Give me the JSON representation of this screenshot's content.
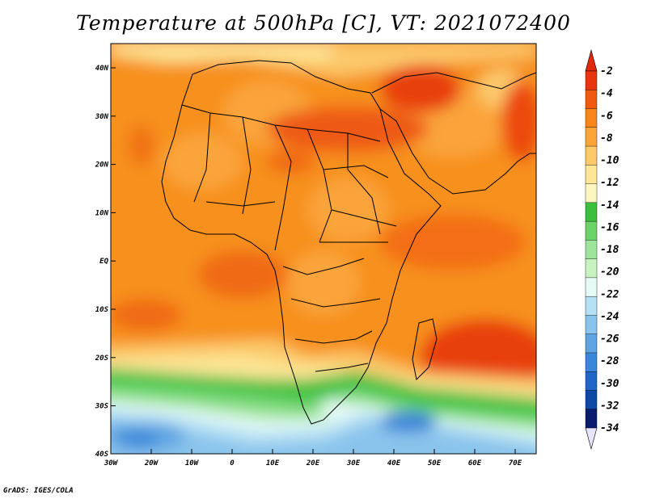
{
  "title": "Temperature at 500hPa [C], VT: 2021072400",
  "credit": "GrADS: IGES/COLA",
  "lat_labels": [
    "40N",
    "30N",
    "20N",
    "10N",
    "EQ",
    "10S",
    "20S",
    "30S",
    "40S"
  ],
  "lon_labels": [
    "30W",
    "20W",
    "10W",
    "0",
    "10E",
    "20E",
    "30E",
    "40E",
    "50E",
    "60E",
    "70E"
  ],
  "colorbar": {
    "labels": [
      "-2",
      "-4",
      "-6",
      "-8",
      "-10",
      "-12",
      "-14",
      "-16",
      "-18",
      "-20",
      "-22",
      "-24",
      "-26",
      "-28",
      "-30",
      "-32",
      "-34"
    ],
    "colors": [
      "#e8350e",
      "#f05a10",
      "#f7851a",
      "#faa43a",
      "#fcc96a",
      "#fde696",
      "#fdf6c0",
      "#3cbf3c",
      "#6ad46a",
      "#9ee49a",
      "#c8f2c0",
      "#e6fbf6",
      "#b6e0f4",
      "#8ac4ec",
      "#5ea4e2",
      "#3a86d8",
      "#2066c6",
      "#1048a8",
      "#0a1c6e"
    ],
    "top_arrow_color": "#e0280a",
    "bottom_arrow_color": "#e8e4fa"
  }
}
